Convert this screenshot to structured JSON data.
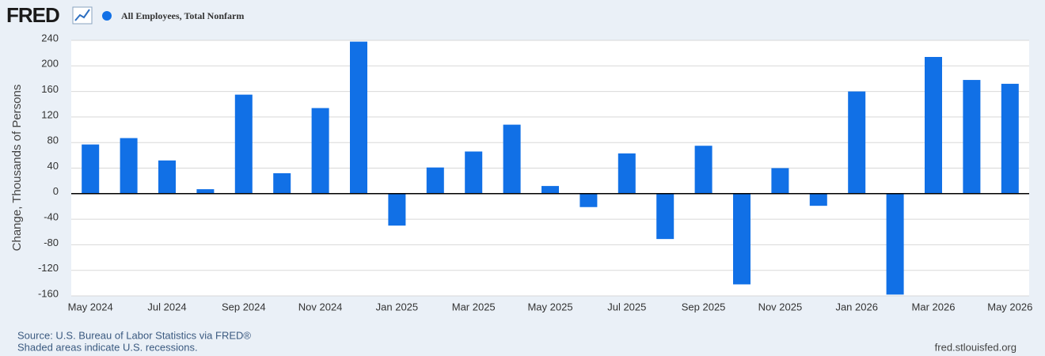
{
  "chart_data": {
    "type": "bar",
    "logo": "FRED",
    "y_label": "Change, Thousands of Persons",
    "source": "Source: U.S. Bureau of Labor Statistics via FRED®",
    "note": "Shaded areas indicate U.S. recessions.",
    "url": "fred.stlouisfed.org",
    "categories": [
      "May 2024",
      null,
      "Jul 2024",
      null,
      "Sep 2024",
      null,
      "Nov 2024",
      null,
      "Jan 2025",
      null,
      "Mar 2025",
      null,
      "May 2025",
      null,
      "Jul 2025",
      null,
      "Sep 2025",
      null,
      "Nov 2025",
      null,
      "Jan 2026",
      null,
      "Mar 2026",
      null,
      "May 2026"
    ],
    "series": [
      {
        "name": "All Employees, Total Nonfarm",
        "color": "#1170e6",
        "values": [
          77,
          87,
          52,
          7,
          155,
          32,
          134,
          238,
          -50,
          41,
          66,
          108,
          12,
          -21,
          63,
          -71,
          75,
          -142,
          40,
          -19,
          160,
          -158,
          214,
          178,
          172
        ]
      }
    ],
    "ylim": [
      -160,
      240
    ],
    "yticks": [
      -160,
      -120,
      -80,
      -40,
      0,
      40,
      80,
      120,
      160,
      200,
      240
    ],
    "grid": true
  }
}
